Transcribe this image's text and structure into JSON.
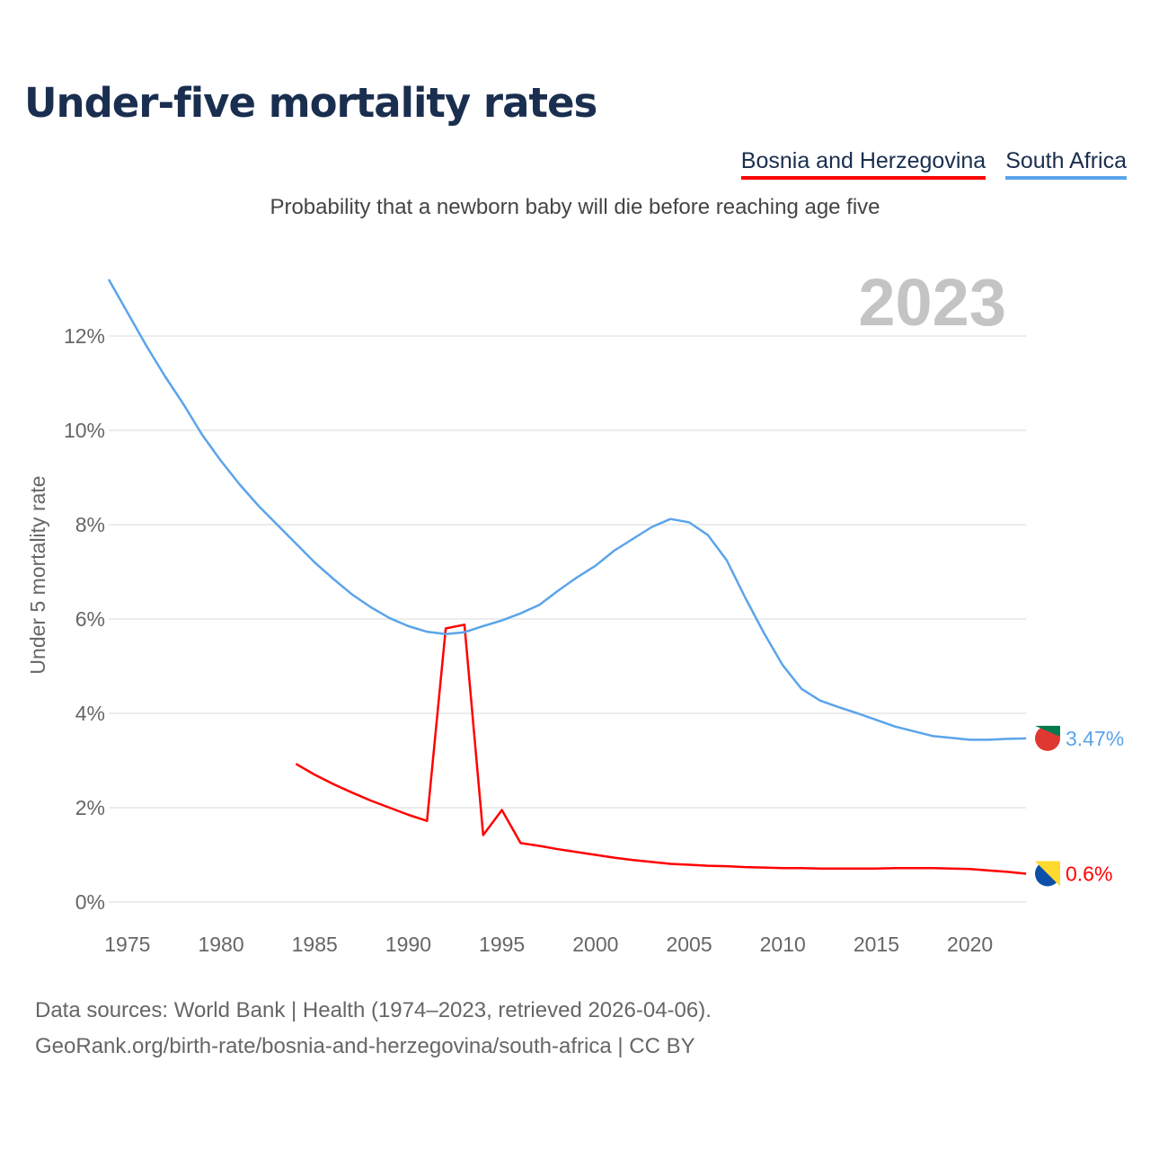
{
  "title": "Under-five mortality rates",
  "subtitle": "Probability that a newborn baby will die before reaching age five",
  "footer": {
    "line1": "Data sources: World Bank | Health (1974–2023, retrieved 2026-04-06).",
    "line2": "GeoRank.org/birth-rate/bosnia-and-herzegovina/south-africa | CC BY"
  },
  "chart_data": {
    "type": "line",
    "title": "Under-five mortality rates",
    "ylabel": "Under 5 mortality rate",
    "xlabel": "",
    "ylim": [
      0,
      13.2
    ],
    "xlim": [
      1974,
      2023
    ],
    "year_label": "2023",
    "yticks": [
      "0%",
      "2%",
      "4%",
      "6%",
      "8%",
      "10%",
      "12%"
    ],
    "ytick_values": [
      0,
      2,
      4,
      6,
      8,
      10,
      12
    ],
    "xticks": [
      "1975",
      "1980",
      "1985",
      "1990",
      "1995",
      "2000",
      "2005",
      "2010",
      "2015",
      "2020"
    ],
    "grid": true,
    "legend_position": "top-right",
    "series": [
      {
        "name": "Bosnia and Herzegovina",
        "color": "#ff0000",
        "end_label": "0.6%",
        "start_year": 1984,
        "values": [
          2.93,
          2.7,
          2.5,
          2.32,
          2.15,
          2.0,
          1.85,
          1.72,
          5.8,
          5.88,
          1.42,
          1.95,
          1.25,
          1.19,
          1.12,
          1.06,
          1.0,
          0.94,
          0.89,
          0.85,
          0.81,
          0.79,
          0.77,
          0.76,
          0.74,
          0.73,
          0.72,
          0.72,
          0.71,
          0.71,
          0.71,
          0.71,
          0.72,
          0.72,
          0.72,
          0.71,
          0.7,
          0.67,
          0.64,
          0.6
        ]
      },
      {
        "name": "South Africa",
        "color": "#5ba4ea",
        "end_label": "3.47%",
        "start_year": 1974,
        "values": [
          13.2,
          12.5,
          11.8,
          11.15,
          10.55,
          9.9,
          9.35,
          8.85,
          8.4,
          8.0,
          7.6,
          7.2,
          6.85,
          6.52,
          6.25,
          6.02,
          5.85,
          5.73,
          5.68,
          5.72,
          5.85,
          5.97,
          6.12,
          6.3,
          6.6,
          6.88,
          7.13,
          7.45,
          7.7,
          7.95,
          8.12,
          8.05,
          7.78,
          7.25,
          6.45,
          5.7,
          5.02,
          4.52,
          4.27,
          4.13,
          4.0,
          3.86,
          3.72,
          3.62,
          3.52,
          3.48,
          3.44,
          3.44,
          3.46,
          3.47
        ]
      }
    ]
  }
}
